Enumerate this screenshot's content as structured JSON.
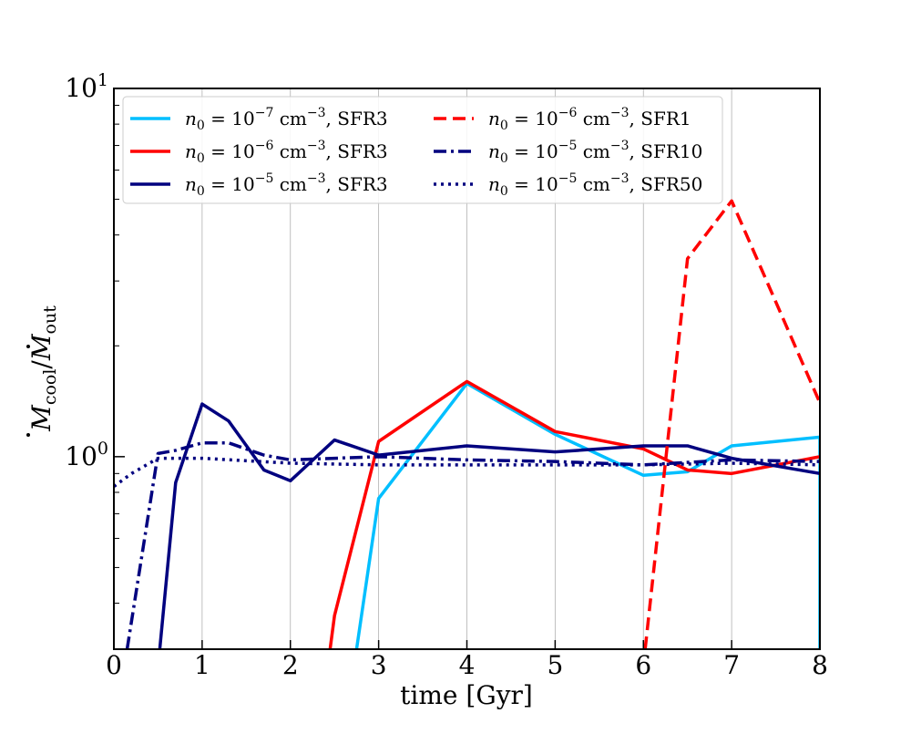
{
  "chart_data": {
    "type": "line",
    "title": "",
    "xlabel": "time [Gyr]",
    "ylabel_parts": {
      "base1": "M",
      "sub1": "cool",
      "slash": "/",
      "base2": "M",
      "sub2": "out"
    },
    "xlim": [
      0,
      8
    ],
    "ylim": [
      0.3,
      10
    ],
    "yscale": "log",
    "x_ticks": [
      0,
      1,
      2,
      3,
      4,
      5,
      6,
      7,
      8
    ],
    "x_tick_labels": [
      "0",
      "1",
      "2",
      "3",
      "4",
      "5",
      "6",
      "7",
      "8"
    ],
    "y_major_ticks": [
      {
        "value": 1,
        "base": "10",
        "exp": "0"
      },
      {
        "value": 10,
        "base": "10",
        "exp": "1"
      }
    ],
    "grid": "vertical",
    "legend_location": "upper-left",
    "series": [
      {
        "id": "s1",
        "label": {
          "n": "n",
          "sub": "0",
          "eq": " = 10",
          "exp": "−7",
          "unit": " cm",
          "unit_exp": "−3",
          "tail": ", SFR3"
        },
        "color": "#00bfff",
        "style": "solid",
        "x": [
          2.75,
          3.0,
          4.0,
          5.0,
          6.0,
          6.5,
          7.0,
          8.0,
          8.0
        ],
        "y": [
          0.3,
          0.77,
          1.58,
          1.15,
          0.89,
          0.91,
          1.07,
          1.13,
          0.3
        ]
      },
      {
        "id": "s2",
        "label": {
          "n": "n",
          "sub": "0",
          "eq": " = 10",
          "exp": "−6",
          "unit": " cm",
          "unit_exp": "−3",
          "tail": ", SFR3"
        },
        "color": "#ff0000",
        "style": "solid",
        "x": [
          2.45,
          2.5,
          3.0,
          4.0,
          5.0,
          6.0,
          6.5,
          7.0,
          8.0
        ],
        "y": [
          0.3,
          0.37,
          1.1,
          1.6,
          1.17,
          1.05,
          0.92,
          0.9,
          1.0
        ]
      },
      {
        "id": "s3",
        "label": {
          "n": "n",
          "sub": "0",
          "eq": " = 10",
          "exp": "−5",
          "unit": " cm",
          "unit_exp": "−3",
          "tail": ", SFR3"
        },
        "color": "#00007f",
        "style": "solid",
        "x": [
          0.52,
          0.7,
          1.0,
          1.3,
          1.7,
          2.0,
          2.5,
          3.0,
          4.0,
          5.0,
          6.0,
          6.5,
          7.0,
          8.0
        ],
        "y": [
          0.3,
          0.85,
          1.39,
          1.25,
          0.92,
          0.86,
          1.11,
          1.01,
          1.07,
          1.03,
          1.07,
          1.07,
          0.99,
          0.9
        ]
      },
      {
        "id": "s4",
        "label": {
          "n": "n",
          "sub": "0",
          "eq": " = 10",
          "exp": "−6",
          "unit": " cm",
          "unit_exp": "−3",
          "tail": ", SFR1"
        },
        "color": "#ff0000",
        "style": "dashed",
        "x": [
          6.02,
          6.5,
          7.0,
          8.0
        ],
        "y": [
          0.3,
          3.45,
          4.95,
          1.4
        ]
      },
      {
        "id": "s5",
        "label": {
          "n": "n",
          "sub": "0",
          "eq": " = 10",
          "exp": "−5",
          "unit": " cm",
          "unit_exp": "−3",
          "tail": ", SFR10"
        },
        "color": "#00007f",
        "style": "dashdot",
        "x": [
          0.15,
          0.5,
          0.7,
          1.0,
          1.3,
          1.7,
          2.0,
          3.0,
          4.0,
          5.0,
          6.0,
          7.0,
          8.0
        ],
        "y": [
          0.3,
          1.02,
          1.04,
          1.09,
          1.09,
          1.01,
          0.98,
          1.0,
          0.98,
          0.97,
          0.95,
          0.98,
          0.97
        ]
      },
      {
        "id": "s6",
        "label": {
          "n": "n",
          "sub": "0",
          "eq": " = 10",
          "exp": "−5",
          "unit": " cm",
          "unit_exp": "−3",
          "tail": ", SFR50"
        },
        "color": "#00007f",
        "style": "dotted",
        "x": [
          0.0,
          0.2,
          0.5,
          1.0,
          2.0,
          3.0,
          4.0,
          5.0,
          6.0,
          7.0,
          8.0
        ],
        "y": [
          0.83,
          0.9,
          0.99,
          0.99,
          0.96,
          0.95,
          0.95,
          0.95,
          0.95,
          0.96,
          0.95
        ]
      }
    ]
  }
}
